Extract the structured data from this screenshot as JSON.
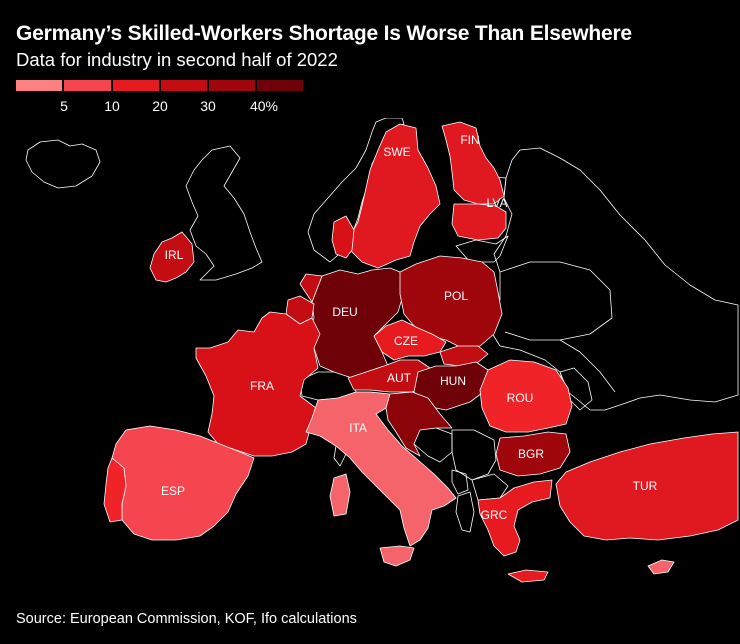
{
  "title": "Germany’s Skilled-Workers Shortage Is Worse Than Elsewhere",
  "subtitle": "Data for industry in second half of 2022",
  "legend": {
    "colors": [
      "#ff8080",
      "#f5454e",
      "#e61a1f",
      "#c30d12",
      "#a0070d",
      "#6e0208"
    ],
    "ticks": [
      "5",
      "10",
      "20",
      "30",
      "40%"
    ]
  },
  "colors": {
    "background": "#000000",
    "non_data_land": "#000000",
    "border": "#ffffff"
  },
  "countries": {
    "swe": {
      "label": "SWE",
      "color": "#e0181f"
    },
    "fin": {
      "label": "FIN",
      "color": "#e0181f"
    },
    "lva": {
      "label": "LVA",
      "color": "#e0181f"
    },
    "irl": {
      "label": "IRL",
      "color": "#c30d12"
    },
    "deu": {
      "label": "DEU",
      "color": "#6e0208"
    },
    "pol": {
      "label": "POL",
      "color": "#a0070d"
    },
    "cze": {
      "label": "CZE",
      "color": "#e61a1f"
    },
    "fra": {
      "label": "FRA",
      "color": "#d81118"
    },
    "aut": {
      "label": "AUT",
      "color": "#c30d12"
    },
    "hun": {
      "label": "HUN",
      "color": "#6e0208"
    },
    "rou": {
      "label": "ROU",
      "color": "#f02428"
    },
    "ita": {
      "label": "ITA",
      "color": "#f5646a"
    },
    "bgr": {
      "label": "BGR",
      "color": "#a0070d"
    },
    "esp": {
      "label": "ESP",
      "color": "#f5454e"
    },
    "tur": {
      "label": "TUR",
      "color": "#e0181f"
    },
    "grc": {
      "label": "GRC",
      "color": "#e61a1f"
    }
  },
  "source": "Source: European Commission, KOF, Ifo calculations"
}
